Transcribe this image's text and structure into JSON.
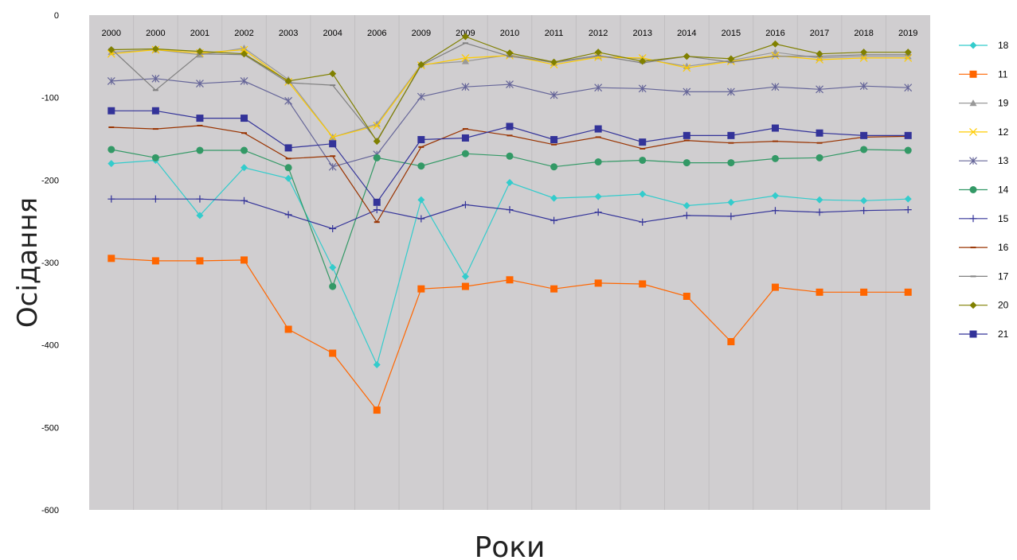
{
  "chart_data": {
    "type": "line",
    "title": "",
    "xlabel": "Роки",
    "ylabel": "Осідання",
    "ylim": [
      -600,
      0
    ],
    "yticks": [
      0,
      -100,
      -200,
      -300,
      -400,
      -500,
      -600
    ],
    "categories": [
      "2000",
      "2000",
      "2001",
      "2002",
      "2003",
      "2004",
      "2006",
      "2009",
      "2009",
      "2010",
      "2011",
      "2012",
      "2013",
      "2014",
      "2015",
      "2016",
      "2017",
      "2018",
      "2019"
    ],
    "grid": "vertical",
    "legend_position": "right",
    "series": [
      {
        "name": "18",
        "color": "#33CCCC",
        "marker": "diamond",
        "values": [
          -180,
          -176,
          -243,
          -185,
          -198,
          -306,
          -424,
          -224,
          -317,
          -203,
          -222,
          -220,
          -217,
          -231,
          -227,
          -219,
          -224,
          -225,
          -223
        ]
      },
      {
        "name": "11",
        "color": "#FF6600",
        "marker": "square",
        "values": [
          -295,
          -298,
          -298,
          -297,
          -381,
          -410,
          -479,
          -332,
          -329,
          -321,
          -332,
          -325,
          -326,
          -341,
          -396,
          -330,
          -336,
          -336,
          -336
        ]
      },
      {
        "name": "19",
        "color": "#999999",
        "marker": "triangle",
        "values": [
          -45,
          -42,
          -48,
          -40,
          -78,
          -148,
          -132,
          -60,
          -56,
          -48,
          -58,
          -50,
          -53,
          -62,
          -55,
          -45,
          -52,
          -50,
          -50
        ]
      },
      {
        "name": "12",
        "color": "#FFCC00",
        "marker": "x",
        "values": [
          -47,
          -42,
          -46,
          -42,
          -81,
          -148,
          -134,
          -61,
          -52,
          -49,
          -60,
          -51,
          -52,
          -64,
          -56,
          -49,
          -54,
          -52,
          -52
        ]
      },
      {
        "name": "13",
        "color": "#666699",
        "marker": "star",
        "values": [
          -80,
          -77,
          -83,
          -80,
          -104,
          -184,
          -169,
          -99,
          -87,
          -84,
          -97,
          -88,
          -89,
          -93,
          -93,
          -87,
          -90,
          -86,
          -88
        ]
      },
      {
        "name": "14",
        "color": "#339966",
        "marker": "circle",
        "values": [
          -163,
          -173,
          -164,
          -164,
          -185,
          -329,
          -173,
          -183,
          -168,
          -171,
          -184,
          -178,
          -176,
          -179,
          -179,
          -174,
          -173,
          -163,
          -164
        ]
      },
      {
        "name": "15",
        "color": "#333399",
        "marker": "plus",
        "values": [
          -223,
          -223,
          -223,
          -225,
          -242,
          -259,
          -236,
          -247,
          -230,
          -236,
          -249,
          -239,
          -251,
          -243,
          -244,
          -237,
          -239,
          -237,
          -236
        ]
      },
      {
        "name": "16",
        "color": "#993300",
        "marker": "dash",
        "values": [
          -136,
          -138,
          -134,
          -143,
          -174,
          -171,
          -251,
          -160,
          -138,
          -146,
          -157,
          -148,
          -162,
          -152,
          -155,
          -153,
          -155,
          -148,
          -147
        ]
      },
      {
        "name": "17",
        "color": "#808080",
        "marker": "dash",
        "values": [
          -41,
          -91,
          -47,
          -48,
          -82,
          -85,
          -152,
          -61,
          -34,
          -50,
          -57,
          -49,
          -58,
          -50,
          -57,
          -50,
          -50,
          -48,
          -48
        ]
      },
      {
        "name": "20",
        "color": "#808000",
        "marker": "diamond",
        "values": [
          -42,
          -41,
          -44,
          -47,
          -80,
          -71,
          -153,
          -60,
          -26,
          -46,
          -57,
          -45,
          -56,
          -50,
          -53,
          -35,
          -47,
          -45,
          -45
        ]
      },
      {
        "name": "21",
        "color": "#333399",
        "marker": "square",
        "values": [
          -116,
          -116,
          -125,
          -125,
          -161,
          -156,
          -227,
          -151,
          -149,
          -135,
          -151,
          -138,
          -154,
          -146,
          -146,
          -137,
          -143,
          -146,
          -146
        ]
      }
    ]
  }
}
